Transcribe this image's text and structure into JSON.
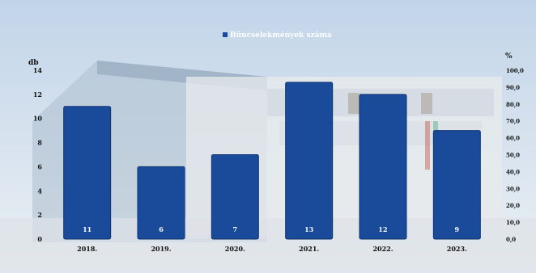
{
  "chart_data": {
    "type": "bar",
    "legend": {
      "label": "Bűncselekmények száma",
      "position": "top-center",
      "color": "#1a4a9a"
    },
    "categories": [
      "2018.",
      "2019.",
      "2020.",
      "2021.",
      "2022.",
      "2023."
    ],
    "series": [
      {
        "name": "Bűncselekmények száma",
        "values": [
          11,
          6,
          7,
          13,
          12,
          9
        ],
        "data_labels": [
          "11",
          "6",
          "7",
          "13",
          "12",
          "9"
        ]
      }
    ],
    "y_left": {
      "unit": "db",
      "ylim": [
        0,
        14
      ],
      "ticks": [
        "0",
        "2",
        "4",
        "6",
        "8",
        "10",
        "12",
        "14"
      ]
    },
    "y_right": {
      "unit": "%",
      "ylim": [
        0,
        100
      ],
      "ticks": [
        "0,0",
        "10,0",
        "20,0",
        "30,0",
        "40,0",
        "50,0",
        "60,0",
        "70,0",
        "80,0",
        "90,0",
        "100,0"
      ]
    },
    "grid": false,
    "colors": {
      "bar": "#1a4a9a",
      "bar_edge": "#0f3272",
      "text": "#111111",
      "label_text": "#ffffff"
    },
    "background": "photo of a building facade (blurred, light blue tones)"
  }
}
